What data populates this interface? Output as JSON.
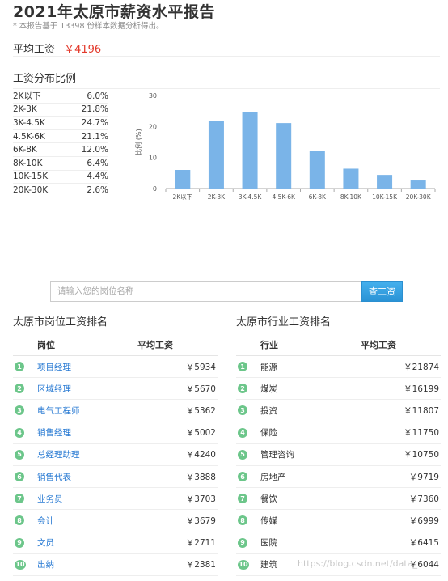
{
  "header": {
    "title": "2021年太原市薪资水平报告",
    "subtitle": "* 本报告基于 13398 份样本数据分析得出。"
  },
  "average": {
    "label": "平均工资",
    "value": "￥4196"
  },
  "distribution": {
    "title": "工资分布比例",
    "rows": [
      {
        "range": "2K以下",
        "pct": "6.0%"
      },
      {
        "range": "2K-3K",
        "pct": "21.8%"
      },
      {
        "range": "3K-4.5K",
        "pct": "24.7%"
      },
      {
        "range": "4.5K-6K",
        "pct": "21.1%"
      },
      {
        "range": "6K-8K",
        "pct": "12.0%"
      },
      {
        "range": "8K-10K",
        "pct": "6.4%"
      },
      {
        "range": "10K-15K",
        "pct": "4.4%"
      },
      {
        "range": "20K-30K",
        "pct": "2.6%"
      }
    ]
  },
  "chart_data": {
    "type": "bar",
    "categories": [
      "2K以下",
      "2K-3K",
      "3K-4.5K",
      "4.5K-6K",
      "6K-8K",
      "8K-10K",
      "10K-15K",
      "20K-30K"
    ],
    "values": [
      6.0,
      21.8,
      24.7,
      21.1,
      12.0,
      6.4,
      4.4,
      2.6
    ],
    "ylabel": "比例 (%)",
    "yticks": [
      0,
      10,
      20,
      30
    ],
    "ylim": [
      0,
      30
    ],
    "bar_color": "#7ab4e8",
    "grid": false
  },
  "search": {
    "placeholder": "请输入您的岗位名称",
    "button": "查工资"
  },
  "job_rank": {
    "title": "太原市岗位工资排名",
    "head_name": "岗位",
    "head_salary": "平均工资",
    "rows": [
      {
        "no": "1",
        "name": "项目经理",
        "salary": "￥5934"
      },
      {
        "no": "2",
        "name": "区域经理",
        "salary": "￥5670"
      },
      {
        "no": "3",
        "name": "电气工程师",
        "salary": "￥5362"
      },
      {
        "no": "4",
        "name": "销售经理",
        "salary": "￥5002"
      },
      {
        "no": "5",
        "name": "总经理助理",
        "salary": "￥4240"
      },
      {
        "no": "6",
        "name": "销售代表",
        "salary": "￥3888"
      },
      {
        "no": "7",
        "name": "业务员",
        "salary": "￥3703"
      },
      {
        "no": "8",
        "name": "会计",
        "salary": "￥3679"
      },
      {
        "no": "9",
        "name": "文员",
        "salary": "￥2711"
      },
      {
        "no": "10",
        "name": "出纳",
        "salary": "￥2381"
      }
    ]
  },
  "industry_rank": {
    "title": "太原市行业工资排名",
    "head_name": "行业",
    "head_salary": "平均工资",
    "rows": [
      {
        "no": "1",
        "name": "能源",
        "salary": "￥21874"
      },
      {
        "no": "2",
        "name": "煤炭",
        "salary": "￥16199"
      },
      {
        "no": "3",
        "name": "投资",
        "salary": "￥11807"
      },
      {
        "no": "4",
        "name": "保险",
        "salary": "￥11750"
      },
      {
        "no": "5",
        "name": "管理咨询",
        "salary": "￥10750"
      },
      {
        "no": "6",
        "name": "房地产",
        "salary": "￥9719"
      },
      {
        "no": "7",
        "name": "餐饮",
        "salary": "￥7360"
      },
      {
        "no": "8",
        "name": "传媒",
        "salary": "￥6999"
      },
      {
        "no": "9",
        "name": "医院",
        "salary": "￥6415"
      },
      {
        "no": "10",
        "name": "建筑",
        "salary": "￥6044"
      }
    ]
  },
  "watermark": "https://blog.csdn.net/data_",
  "colors": {
    "accent_red": "#e3392b",
    "link_blue": "#2a7bd3",
    "badge_green": "#6cc68a",
    "button_blue": "#2a93d6"
  }
}
